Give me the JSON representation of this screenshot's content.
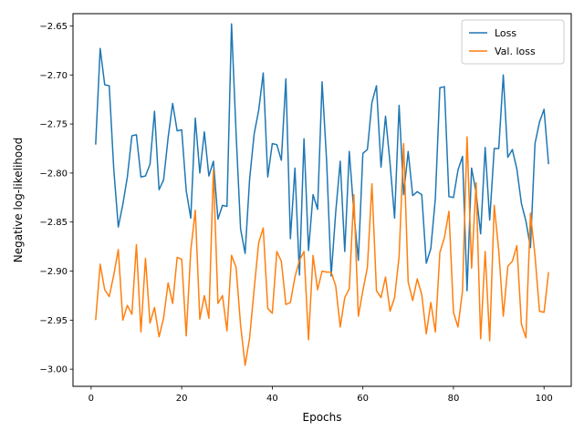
{
  "chart_data": {
    "type": "line",
    "title": "",
    "xlabel": "Epochs",
    "ylabel": "Negative log-likelihood",
    "xlim": [
      -4,
      106
    ],
    "ylim": [
      -3.0175,
      -2.6375
    ],
    "xticks": [
      0,
      20,
      40,
      60,
      80,
      100
    ],
    "yticks": [
      -3.0,
      -2.95,
      -2.9,
      -2.85,
      -2.8,
      -2.75,
      -2.7,
      -2.65
    ],
    "ytick_labels": [
      "−3.00",
      "−2.95",
      "−2.90",
      "−2.85",
      "−2.80",
      "−2.75",
      "−2.70",
      "−2.65"
    ],
    "grid": false,
    "legend_position": "top-right",
    "series": [
      {
        "name": "Loss",
        "color": "#1f77b4",
        "x": [
          1,
          2,
          3,
          4,
          5,
          6,
          7,
          8,
          9,
          10,
          11,
          12,
          13,
          14,
          15,
          16,
          17,
          18,
          19,
          20,
          21,
          22,
          23,
          24,
          25,
          26,
          27,
          28,
          29,
          30,
          31,
          32,
          33,
          34,
          35,
          36,
          37,
          38,
          39,
          40,
          41,
          42,
          43,
          44,
          45,
          46,
          47,
          48,
          49,
          50,
          51,
          52,
          53,
          54,
          55,
          56,
          57,
          58,
          59,
          60,
          61,
          62,
          63,
          64,
          65,
          66,
          67,
          68,
          69,
          70,
          71,
          72,
          73,
          74,
          75,
          76,
          77,
          78,
          79,
          80,
          81,
          82,
          83,
          84,
          85,
          86,
          87,
          88,
          89,
          90,
          91,
          92,
          93,
          94,
          95,
          96,
          97,
          98,
          99,
          100,
          101
        ],
        "values": [
          -2.771,
          -2.673,
          -2.71,
          -2.711,
          -2.796,
          -2.855,
          -2.832,
          -2.804,
          -2.762,
          -2.761,
          -2.804,
          -2.803,
          -2.791,
          -2.737,
          -2.817,
          -2.807,
          -2.764,
          -2.729,
          -2.757,
          -2.756,
          -2.818,
          -2.846,
          -2.744,
          -2.8,
          -2.758,
          -2.803,
          -2.788,
          -2.847,
          -2.833,
          -2.834,
          -2.648,
          -2.759,
          -2.857,
          -2.882,
          -2.806,
          -2.76,
          -2.736,
          -2.698,
          -2.804,
          -2.77,
          -2.771,
          -2.787,
          -2.704,
          -2.867,
          -2.795,
          -2.904,
          -2.765,
          -2.879,
          -2.822,
          -2.837,
          -2.707,
          -2.788,
          -2.905,
          -2.84,
          -2.788,
          -2.88,
          -2.778,
          -2.84,
          -2.889,
          -2.78,
          -2.776,
          -2.728,
          -2.711,
          -2.794,
          -2.742,
          -2.79,
          -2.846,
          -2.731,
          -2.822,
          -2.778,
          -2.823,
          -2.819,
          -2.822,
          -2.892,
          -2.877,
          -2.826,
          -2.713,
          -2.712,
          -2.824,
          -2.825,
          -2.797,
          -2.783,
          -2.92,
          -2.795,
          -2.82,
          -2.862,
          -2.774,
          -2.848,
          -2.775,
          -2.775,
          -2.7,
          -2.784,
          -2.776,
          -2.796,
          -2.831,
          -2.849,
          -2.876,
          -2.77,
          -2.748,
          -2.735,
          -2.791
        ]
      },
      {
        "name": "Val. loss",
        "color": "#ff7f0e",
        "x": [
          1,
          2,
          3,
          4,
          5,
          6,
          7,
          8,
          9,
          10,
          11,
          12,
          13,
          14,
          15,
          16,
          17,
          18,
          19,
          20,
          21,
          22,
          23,
          24,
          25,
          26,
          27,
          28,
          29,
          30,
          31,
          32,
          33,
          34,
          35,
          36,
          37,
          38,
          39,
          40,
          41,
          42,
          43,
          44,
          45,
          46,
          47,
          48,
          49,
          50,
          51,
          52,
          53,
          54,
          55,
          56,
          57,
          58,
          59,
          60,
          61,
          62,
          63,
          64,
          65,
          66,
          67,
          68,
          69,
          70,
          71,
          72,
          73,
          74,
          75,
          76,
          77,
          78,
          79,
          80,
          81,
          82,
          83,
          84,
          85,
          86,
          87,
          88,
          89,
          90,
          91,
          92,
          93,
          94,
          95,
          96,
          97,
          98,
          99,
          100,
          101
        ],
        "values": [
          -2.95,
          -2.893,
          -2.919,
          -2.926,
          -2.904,
          -2.878,
          -2.95,
          -2.935,
          -2.944,
          -2.873,
          -2.962,
          -2.887,
          -2.953,
          -2.937,
          -2.967,
          -2.948,
          -2.912,
          -2.933,
          -2.886,
          -2.888,
          -2.966,
          -2.879,
          -2.838,
          -2.949,
          -2.925,
          -2.948,
          -2.797,
          -2.933,
          -2.925,
          -2.961,
          -2.884,
          -2.896,
          -2.955,
          -2.996,
          -2.968,
          -2.918,
          -2.871,
          -2.856,
          -2.938,
          -2.943,
          -2.88,
          -2.89,
          -2.934,
          -2.932,
          -2.906,
          -2.889,
          -2.88,
          -2.97,
          -2.884,
          -2.919,
          -2.9,
          -2.901,
          -2.901,
          -2.915,
          -2.957,
          -2.927,
          -2.918,
          -2.822,
          -2.946,
          -2.92,
          -2.896,
          -2.811,
          -2.92,
          -2.927,
          -2.906,
          -2.941,
          -2.927,
          -2.885,
          -2.77,
          -2.911,
          -2.93,
          -2.908,
          -2.924,
          -2.964,
          -2.932,
          -2.962,
          -2.881,
          -2.866,
          -2.839,
          -2.942,
          -2.957,
          -2.92,
          -2.763,
          -2.897,
          -2.81,
          -2.969,
          -2.88,
          -2.971,
          -2.833,
          -2.879,
          -2.946,
          -2.895,
          -2.89,
          -2.874,
          -2.954,
          -2.968,
          -2.841,
          -2.884,
          -2.941,
          -2.942,
          -2.901
        ]
      }
    ]
  }
}
